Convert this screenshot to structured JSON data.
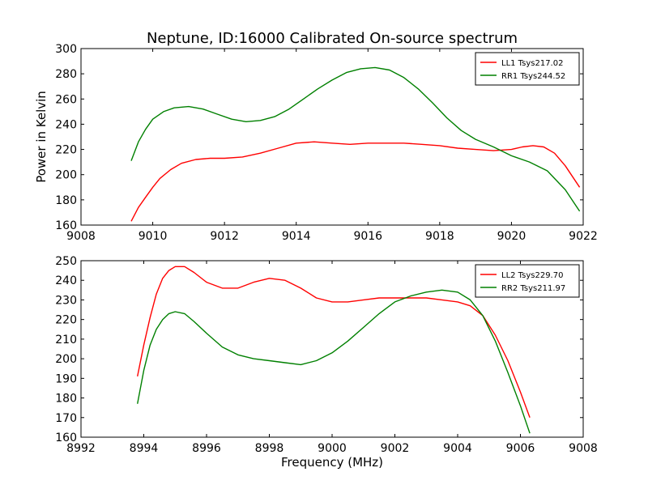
{
  "figure": {
    "title": "Neptune, ID:16000 Calibrated On-source spectrum",
    "ylabel": "Power in Kelvin",
    "xlabel": "Frequency (MHz)"
  },
  "chart_data": [
    {
      "type": "line",
      "title": "Neptune, ID:16000 Calibrated On-source spectrum",
      "ylabel": "Power in Kelvin",
      "xlabel": "",
      "xlim": [
        9008,
        9022
      ],
      "ylim": [
        160,
        300
      ],
      "xticks": [
        "9008",
        "9010",
        "9012",
        "9014",
        "9016",
        "9018",
        "9020",
        "9022"
      ],
      "yticks": [
        "160",
        "180",
        "200",
        "220",
        "240",
        "260",
        "280",
        "300"
      ],
      "grid": false,
      "legend": "top-right",
      "series": [
        {
          "name": "LL1 Tsys217.02",
          "color": "#ff0000",
          "x": [
            9009.4,
            9009.6,
            9009.8,
            9010.0,
            9010.2,
            9010.5,
            9010.8,
            9011.2,
            9011.6,
            9012.0,
            9012.5,
            9013.0,
            9013.5,
            9014.0,
            9014.5,
            9015.0,
            9015.5,
            9016.0,
            9016.5,
            9017.0,
            9017.5,
            9018.0,
            9018.5,
            9019.0,
            9019.5,
            9020.0,
            9020.3,
            9020.6,
            9020.9,
            9021.2,
            9021.5,
            9021.9
          ],
          "y": [
            163,
            174,
            182,
            190,
            197,
            204,
            209,
            212,
            213,
            213,
            214,
            217,
            221,
            225,
            226,
            225,
            224,
            225,
            225,
            225,
            224,
            223,
            221,
            220,
            219,
            220,
            222,
            223,
            222,
            217,
            207,
            190
          ]
        },
        {
          "name": "RR1 Tsys244.52",
          "color": "#008000",
          "x": [
            9009.4,
            9009.6,
            9009.8,
            9010.0,
            9010.3,
            9010.6,
            9011.0,
            9011.4,
            9011.8,
            9012.2,
            9012.6,
            9013.0,
            9013.4,
            9013.8,
            9014.2,
            9014.6,
            9015.0,
            9015.4,
            9015.8,
            9016.2,
            9016.6,
            9017.0,
            9017.4,
            9017.8,
            9018.2,
            9018.6,
            9019.0,
            9019.5,
            9020.0,
            9020.5,
            9021.0,
            9021.5,
            9021.9
          ],
          "y": [
            211,
            226,
            236,
            244,
            250,
            253,
            254,
            252,
            248,
            244,
            242,
            243,
            246,
            252,
            260,
            268,
            275,
            281,
            284,
            285,
            283,
            277,
            268,
            257,
            245,
            235,
            228,
            222,
            215,
            210,
            203,
            188,
            171
          ]
        }
      ]
    },
    {
      "type": "line",
      "title": "",
      "ylabel": "",
      "xlabel": "Frequency (MHz)",
      "xlim": [
        8992,
        9008
      ],
      "ylim": [
        160,
        250
      ],
      "xticks": [
        "8992",
        "8994",
        "8996",
        "8998",
        "9000",
        "9002",
        "9004",
        "9006",
        "9008"
      ],
      "yticks": [
        "160",
        "170",
        "180",
        "190",
        "200",
        "210",
        "220",
        "230",
        "240",
        "250"
      ],
      "grid": false,
      "legend": "top-right",
      "series": [
        {
          "name": "LL2 Tsys229.70",
          "color": "#ff0000",
          "x": [
            8993.8,
            8994.0,
            8994.2,
            8994.4,
            8994.6,
            8994.8,
            8995.0,
            8995.3,
            8995.6,
            8996.0,
            8996.5,
            8997.0,
            8997.5,
            8998.0,
            8998.5,
            8999.0,
            8999.5,
            9000.0,
            9000.5,
            9001.0,
            9001.5,
            9002.0,
            9002.5,
            9003.0,
            9003.5,
            9004.0,
            9004.4,
            9004.8,
            9005.2,
            9005.6,
            9006.0,
            9006.3
          ],
          "y": [
            191,
            207,
            221,
            233,
            241,
            245,
            247,
            247,
            244,
            239,
            236,
            236,
            239,
            241,
            240,
            236,
            231,
            229,
            229,
            230,
            231,
            231,
            231,
            231,
            230,
            229,
            227,
            222,
            212,
            199,
            183,
            170
          ]
        },
        {
          "name": "RR2 Tsys211.97",
          "color": "#008000",
          "x": [
            8993.8,
            8994.0,
            8994.2,
            8994.4,
            8994.6,
            8994.8,
            8995.0,
            8995.3,
            8995.6,
            8996.0,
            8996.5,
            8997.0,
            8997.5,
            8998.0,
            8998.5,
            8999.0,
            8999.5,
            9000.0,
            9000.5,
            9001.0,
            9001.5,
            9002.0,
            9002.5,
            9003.0,
            9003.5,
            9004.0,
            9004.4,
            9004.8,
            9005.2,
            9005.6,
            9006.0,
            9006.3
          ],
          "y": [
            177,
            194,
            207,
            215,
            220,
            223,
            224,
            223,
            219,
            213,
            206,
            202,
            200,
            199,
            198,
            197,
            199,
            203,
            209,
            216,
            223,
            229,
            232,
            234,
            235,
            234,
            230,
            222,
            209,
            193,
            176,
            162
          ]
        }
      ]
    }
  ]
}
